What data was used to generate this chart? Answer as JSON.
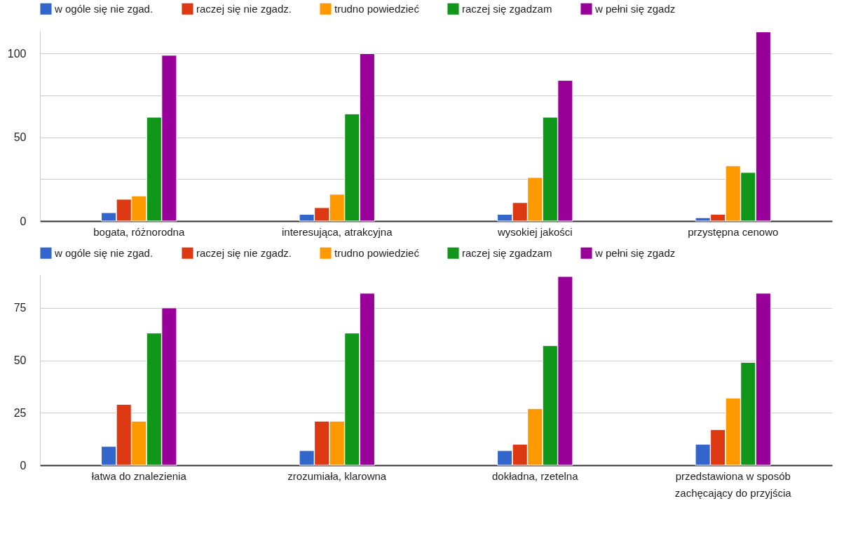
{
  "chart_data": [
    {
      "type": "bar",
      "categories": [
        "bogata, różnorodna",
        "interesująca, atrakcyjna",
        "wysokiej jakości",
        "przystępna cenowo"
      ],
      "series": [
        {
          "name": "w ogóle się nie zgad.",
          "color": "#3366cc",
          "values": [
            5,
            4,
            4,
            2
          ]
        },
        {
          "name": "raczej się nie zgadz.",
          "color": "#dc3912",
          "values": [
            13,
            8,
            11,
            4
          ]
        },
        {
          "name": "trudno powiedzieć",
          "color": "#ff9900",
          "values": [
            15,
            16,
            26,
            33
          ]
        },
        {
          "name": "raczej się zgadzam",
          "color": "#109618",
          "values": [
            62,
            64,
            62,
            29
          ]
        },
        {
          "name": "w pełni się zgadz",
          "color": "#990099",
          "values": [
            99,
            100,
            84,
            113
          ]
        }
      ],
      "ylim": [
        0,
        114
      ],
      "yticks": [
        0,
        {
          "value": 25,
          "label": null
        },
        50,
        {
          "value": 75,
          "label": null
        },
        100
      ],
      "grid": "y",
      "legend": "top"
    },
    {
      "type": "bar",
      "categories": [
        "łatwa do znalezienia",
        "zrozumiała, klarowna",
        "dokładna, rzetelna",
        "przedstawiona w sposób zachęcający do przyjścia"
      ],
      "series": [
        {
          "name": "w ogóle się nie zgad.",
          "color": "#3366cc",
          "values": [
            9,
            7,
            7,
            10
          ]
        },
        {
          "name": "raczej się nie zgadz.",
          "color": "#dc3912",
          "values": [
            29,
            21,
            10,
            17
          ]
        },
        {
          "name": "trudno powiedzieć",
          "color": "#ff9900",
          "values": [
            21,
            21,
            27,
            32
          ]
        },
        {
          "name": "raczej się zgadzam",
          "color": "#109618",
          "values": [
            63,
            63,
            57,
            49
          ]
        },
        {
          "name": "w pełni się zgadz",
          "color": "#990099",
          "values": [
            75,
            82,
            90,
            82
          ]
        }
      ],
      "ylim": [
        0,
        91
      ],
      "yticks": [
        0,
        25,
        50,
        75
      ],
      "grid": "y",
      "legend": "top"
    }
  ]
}
